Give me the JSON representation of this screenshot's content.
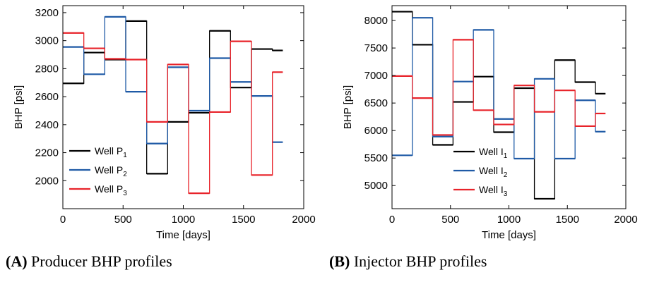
{
  "chart_data": [
    {
      "type": "line",
      "step": true,
      "caption_tag": "(A)",
      "caption_text": "Producer BHP profiles",
      "xlabel": "Time [days]",
      "ylabel": "BHP [psi]",
      "xlim": [
        0,
        2000
      ],
      "ylim": [
        1800,
        3250
      ],
      "xticks": [
        0,
        500,
        1000,
        1500,
        2000
      ],
      "yticks": [
        2000,
        2200,
        2400,
        2600,
        2800,
        3000,
        3200
      ],
      "legend_position": "lower-left",
      "legend": [
        {
          "prefix": "Well P",
          "sub": "1",
          "color": "#000000"
        },
        {
          "prefix": "Well P",
          "sub": "2",
          "color": "#1f5aa6"
        },
        {
          "prefix": "Well P",
          "sub": "3",
          "color": "#e8232a"
        }
      ],
      "x_edges": [
        0,
        174,
        348,
        522,
        696,
        870,
        1044,
        1218,
        1392,
        1566,
        1740,
        1826
      ],
      "series": [
        {
          "color": "#000000",
          "values": [
            2695,
            2915,
            2865,
            3140,
            2050,
            2420,
            2485,
            3070,
            2665,
            2940,
            2930
          ]
        },
        {
          "color": "#1f5aa6",
          "values": [
            2955,
            2760,
            3170,
            2635,
            2265,
            2810,
            2500,
            2875,
            2705,
            2605,
            2275
          ]
        },
        {
          "color": "#e8232a",
          "values": [
            3055,
            2945,
            2870,
            2865,
            2420,
            2830,
            1910,
            2490,
            2995,
            2040,
            2775
          ]
        }
      ]
    },
    {
      "type": "line",
      "step": true,
      "caption_tag": "(B)",
      "caption_text": "Injector BHP profiles",
      "xlabel": "Time [days]",
      "ylabel": "BHP [psi]",
      "xlim": [
        0,
        2000
      ],
      "ylim": [
        4580,
        8270
      ],
      "xticks": [
        0,
        500,
        1000,
        1500,
        2000
      ],
      "yticks": [
        5000,
        5500,
        6000,
        6500,
        7000,
        7500,
        8000
      ],
      "legend_position": "lower-left",
      "legend": [
        {
          "prefix": "Well I",
          "sub": "1",
          "color": "#000000"
        },
        {
          "prefix": "Well I",
          "sub": "2",
          "color": "#1f5aa6"
        },
        {
          "prefix": "Well I",
          "sub": "3",
          "color": "#e8232a"
        }
      ],
      "x_edges": [
        0,
        174,
        348,
        522,
        696,
        870,
        1044,
        1218,
        1392,
        1566,
        1740,
        1826
      ],
      "series": [
        {
          "color": "#000000",
          "values": [
            8160,
            7560,
            5740,
            6520,
            6980,
            5970,
            6770,
            4760,
            7280,
            6880,
            6670
          ]
        },
        {
          "color": "#1f5aa6",
          "values": [
            5550,
            8050,
            5890,
            6890,
            7830,
            6210,
            5490,
            6940,
            5490,
            6550,
            5980
          ]
        },
        {
          "color": "#e8232a",
          "values": [
            6990,
            6590,
            5920,
            7650,
            6370,
            6110,
            6820,
            6340,
            6730,
            6080,
            6310
          ]
        }
      ]
    }
  ]
}
